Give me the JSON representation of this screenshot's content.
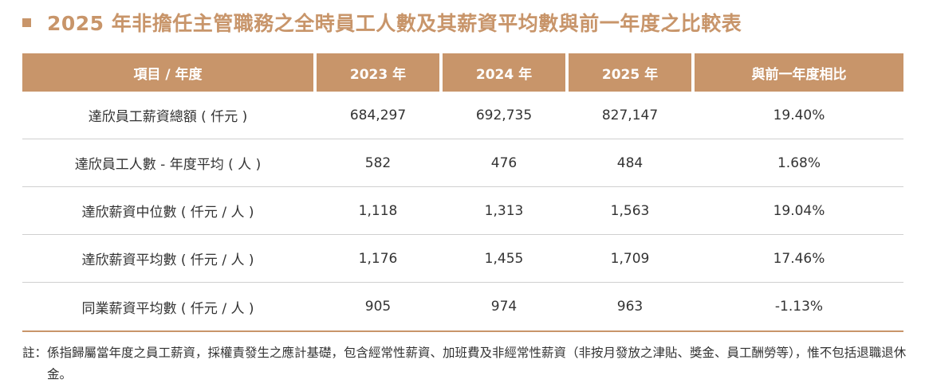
{
  "title": "2025 年非擔任主管職務之全時員工人數及其薪資平均數與前一年度之比較表",
  "table": {
    "headers": [
      "項目 / 年度",
      "2023 年",
      "2024 年",
      "2025 年",
      "與前一年度相比"
    ],
    "rows": [
      [
        "達欣員工薪資總額 ( 仟元 )",
        "684,297",
        "692,735",
        "827,147",
        "19.40%"
      ],
      [
        "達欣員工人數 - 年度平均 ( 人 )",
        "582",
        "476",
        "484",
        "1.68%"
      ],
      [
        "達欣薪資中位數 ( 仟元 / 人 )",
        "1,118",
        "1,313",
        "1,563",
        "19.04%"
      ],
      [
        "達欣薪資平均數 ( 仟元 / 人 )",
        "1,176",
        "1,455",
        "1,709",
        "17.46%"
      ],
      [
        "同業薪資平均數 ( 仟元 / 人 )",
        "905",
        "974",
        "963",
        "-1.13%"
      ]
    ]
  },
  "note": {
    "label": "註：",
    "text": "係指歸屬當年度之員工薪資，採權責發生之應計基礎，包含經常性薪資、加班費及非經常性薪資（非按月發放之津貼、獎金、員工酬勞等），惟不包括退職退休金。"
  },
  "colors": {
    "accent": "#c8956a",
    "text": "#333333",
    "row_divider": "#cfcfcf"
  }
}
